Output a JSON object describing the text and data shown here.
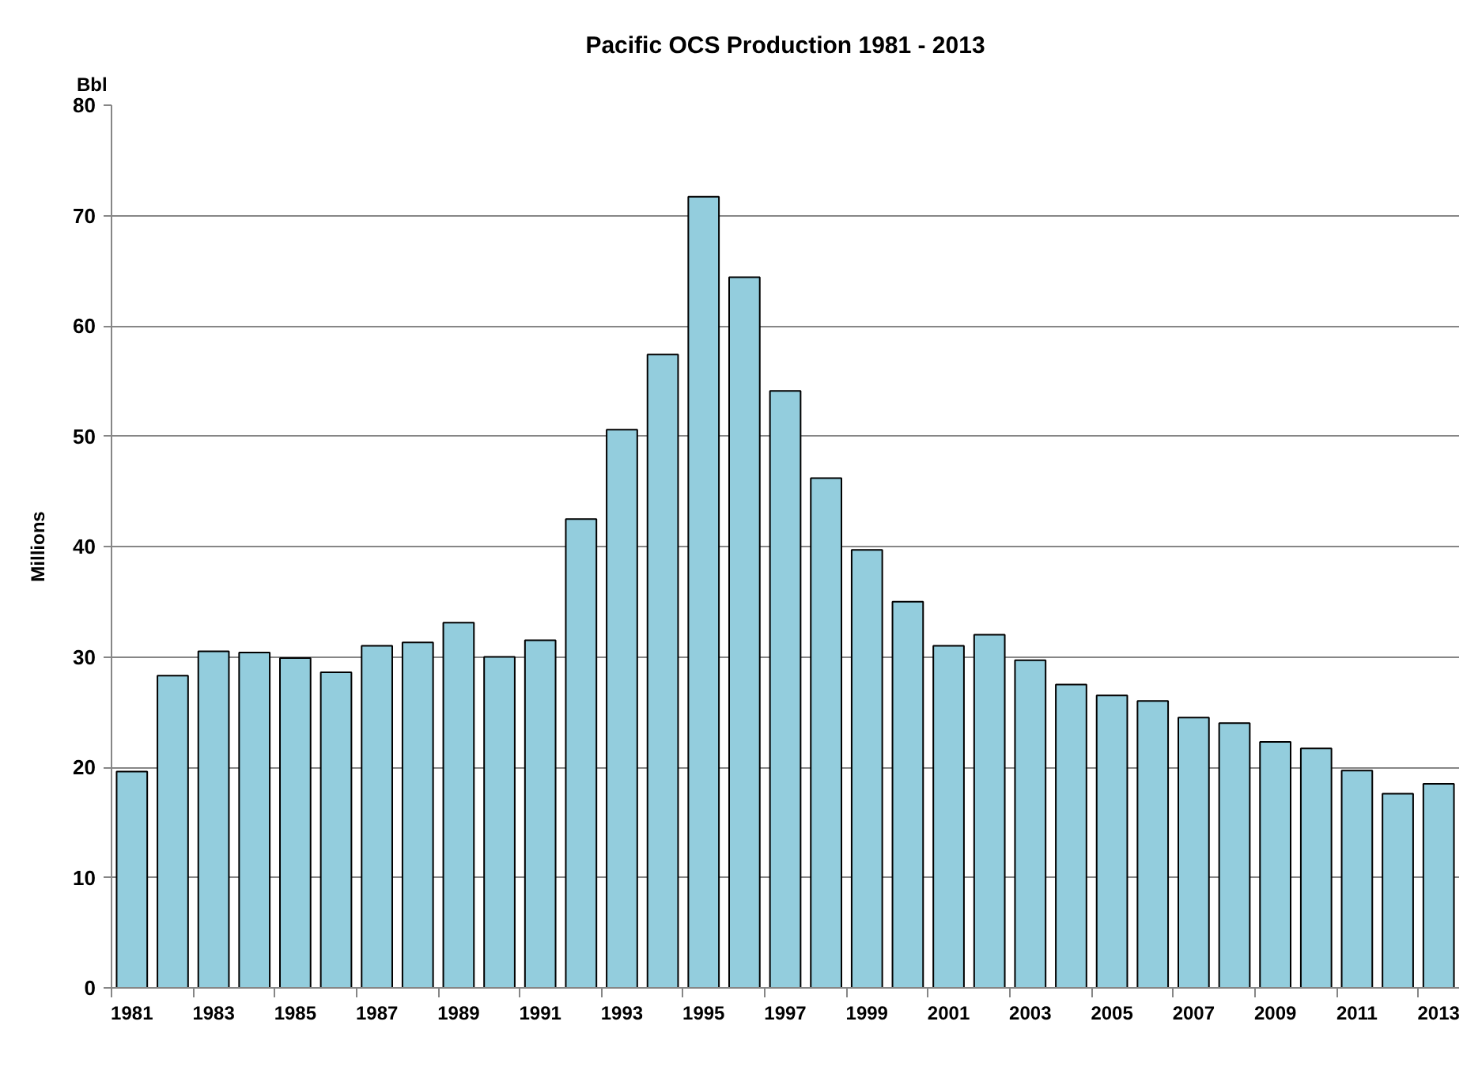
{
  "chart_data": {
    "type": "bar",
    "title": "Pacific OCS Production 1981 - 2013",
    "ylabel": "Millions",
    "annotations": [
      "Bbl"
    ],
    "categories": [
      "1981",
      null,
      "1983",
      null,
      "1985",
      null,
      "1987",
      null,
      "1989",
      null,
      "1991",
      null,
      "1993",
      null,
      "1995",
      null,
      "1997",
      null,
      "1999",
      null,
      "2001",
      null,
      "2003",
      null,
      "2005",
      null,
      "2007",
      null,
      "2009",
      null,
      "2011",
      null,
      "2013"
    ],
    "values": [
      19.6,
      28.3,
      30.5,
      30.4,
      29.9,
      28.6,
      31.0,
      31.3,
      33.1,
      30.0,
      31.5,
      42.5,
      50.6,
      57.4,
      71.7,
      64.4,
      54.1,
      46.2,
      39.7,
      35.0,
      31.0,
      32.0,
      29.7,
      27.5,
      26.5,
      26.0,
      24.5,
      24.0,
      22.3,
      21.7,
      19.7,
      17.6,
      18.5
    ],
    "color": "#93cddd",
    "ylim": [
      0,
      80
    ],
    "yticks": [
      0,
      10,
      20,
      30,
      40,
      50,
      60,
      70,
      80
    ],
    "grid": "y"
  }
}
